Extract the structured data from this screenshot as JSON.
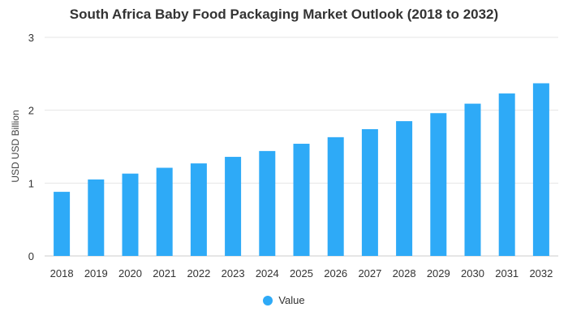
{
  "chart_data": {
    "type": "bar",
    "title": "South Africa Baby Food Packaging Market Outlook (2018 to 2032)",
    "xlabel": "",
    "ylabel": "USD USD Billion",
    "ylim": [
      0,
      3
    ],
    "yticks": [
      0,
      1,
      2,
      3
    ],
    "grid": true,
    "legend_position": "bottom",
    "categories": [
      "2018",
      "2019",
      "2020",
      "2021",
      "2022",
      "2023",
      "2024",
      "2025",
      "2026",
      "2027",
      "2028",
      "2029",
      "2030",
      "2031",
      "2032"
    ],
    "series": [
      {
        "name": "Value",
        "color": "#2eaaf7",
        "values": [
          0.88,
          1.05,
          1.13,
          1.21,
          1.27,
          1.36,
          1.44,
          1.54,
          1.63,
          1.74,
          1.85,
          1.96,
          2.09,
          2.23,
          2.37
        ]
      }
    ]
  }
}
